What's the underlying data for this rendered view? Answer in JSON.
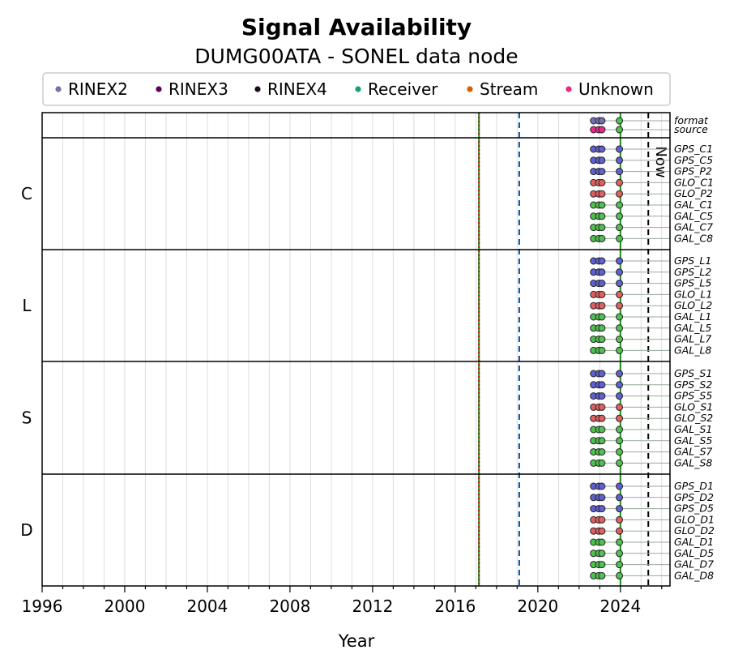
{
  "chart_data": {
    "type": "scatter",
    "title": "Signal Availability",
    "subtitle": "DUMG00ATA - SONEL data node",
    "xlabel": "Year",
    "xlim": [
      1996,
      2026.4
    ],
    "xticks": [
      "1996",
      "2000",
      "2004",
      "2008",
      "2012",
      "2016",
      "2020",
      "2024"
    ],
    "legend": {
      "placement": "top",
      "entries": [
        {
          "label": "RINEX2",
          "color": "#7570b3"
        },
        {
          "label": "RINEX3",
          "color": "#5c005c"
        },
        {
          "label": "RINEX4",
          "color": "#1a0a1a"
        },
        {
          "label": "Receiver",
          "color": "#1b9e77"
        },
        {
          "label": "Stream",
          "color": "#d95f02"
        },
        {
          "label": "Unknown",
          "color": "#e7298a"
        }
      ]
    },
    "vertical_lines": [
      {
        "x": 2017.15,
        "style": "solid",
        "color": "#1a8a1a"
      },
      {
        "x": 2017.15,
        "style": "dotted",
        "color": "#cc0000"
      },
      {
        "x": 2019.1,
        "style": "dashed",
        "color": "#0050a0"
      },
      {
        "x": 2024.0,
        "style": "solid",
        "color": "#1a8a1a"
      },
      {
        "x": 2025.35,
        "style": "dashed",
        "color": "#000000",
        "label": "Now"
      }
    ],
    "meta_rows": [
      {
        "label": "format",
        "color": "#7570b3"
      },
      {
        "label": "source",
        "color": "#e7298a"
      }
    ],
    "groups": [
      {
        "name": "C",
        "signals": [
          "GPS_C1",
          "GPS_C5",
          "GPS_P2",
          "GLO_C1",
          "GLO_P2",
          "GAL_C1",
          "GAL_C5",
          "GAL_C7",
          "GAL_C8"
        ]
      },
      {
        "name": "L",
        "signals": [
          "GPS_L1",
          "GPS_L2",
          "GPS_L5",
          "GLO_L1",
          "GLO_L2",
          "GAL_L1",
          "GAL_L5",
          "GAL_L7",
          "GAL_L8"
        ]
      },
      {
        "name": "S",
        "signals": [
          "GPS_S1",
          "GPS_S2",
          "GPS_S5",
          "GLO_S1",
          "GLO_S2",
          "GAL_S1",
          "GAL_S5",
          "GAL_S7",
          "GAL_S8"
        ]
      },
      {
        "name": "D",
        "signals": [
          "GPS_D1",
          "GPS_D2",
          "GPS_D5",
          "GLO_D1",
          "GLO_D2",
          "GAL_D1",
          "GAL_D5",
          "GAL_D7",
          "GAL_D8"
        ]
      }
    ],
    "constellation_colors": {
      "GPS": "#6060d0",
      "GLO": "#e06060",
      "GAL": "#50c050"
    },
    "observation_points": [
      2022.7,
      2022.95,
      2023.1,
      2023.95
    ],
    "grid": "vertical, yearly",
    "x_range_end": 2026.2
  }
}
